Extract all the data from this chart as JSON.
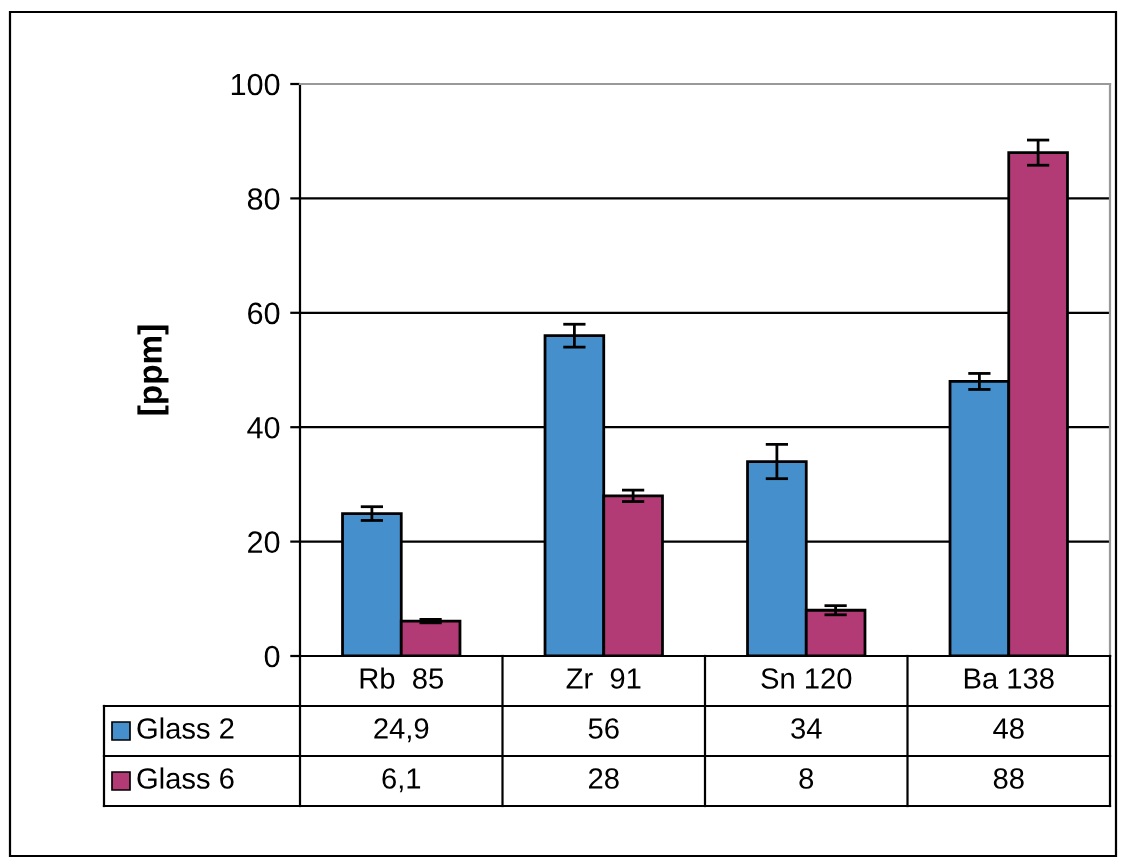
{
  "chart_data": {
    "type": "bar",
    "ylabel": "[ppm]",
    "categories": [
      "Rb  85",
      "Zr  91",
      "Sn 120",
      "Ba 138"
    ],
    "series": [
      {
        "name": "Glass 2",
        "color": "#4590cc",
        "values": [
          24.9,
          56,
          34,
          48
        ],
        "value_labels": [
          "24,9",
          "56",
          "34",
          "48"
        ],
        "errors": [
          1.2,
          2,
          3,
          1.4
        ]
      },
      {
        "name": "Glass 6",
        "color": "#b23b76",
        "values": [
          6.1,
          28,
          8,
          88
        ],
        "value_labels": [
          "6,1",
          "28",
          "8",
          "88"
        ],
        "errors": [
          0.3,
          1,
          0.8,
          2.2
        ]
      }
    ],
    "ylim": [
      0,
      100
    ],
    "yticks": [
      0,
      20,
      40,
      60,
      80,
      100
    ],
    "grid": "y",
    "legend": "bottom"
  }
}
